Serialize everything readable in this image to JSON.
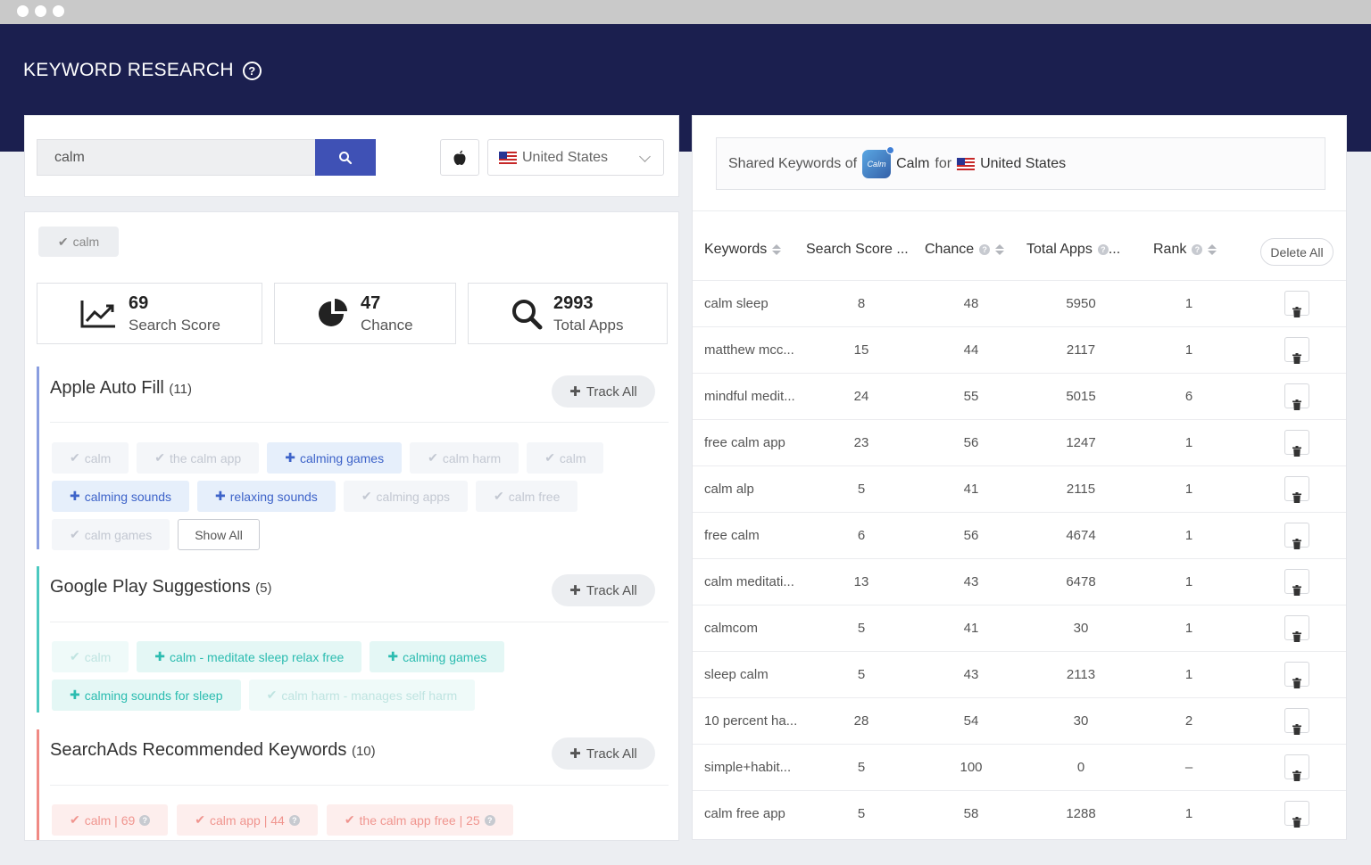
{
  "header": {
    "title": "KEYWORD RESEARCH"
  },
  "search": {
    "value": "calm",
    "country": "United States"
  },
  "selected_keyword": "calm",
  "stats": [
    {
      "value": "69",
      "label": "Search Score",
      "icon": "chart-line-icon"
    },
    {
      "value": "47",
      "label": "Chance",
      "icon": "pie-chart-icon"
    },
    {
      "value": "2993",
      "label": "Total Apps",
      "icon": "search-icon"
    }
  ],
  "sections": {
    "apple": {
      "title": "Apple Auto Fill",
      "count": "(11)",
      "track_all": "Track All",
      "chips": [
        {
          "label": "calm",
          "state": "added"
        },
        {
          "label": "the calm app",
          "state": "added"
        },
        {
          "label": "calming games",
          "state": "new"
        },
        {
          "label": "calm harm",
          "state": "added"
        },
        {
          "label": "calm",
          "state": "added"
        },
        {
          "label": "calming sounds",
          "state": "new"
        },
        {
          "label": "relaxing sounds",
          "state": "new"
        },
        {
          "label": "calming apps",
          "state": "added"
        },
        {
          "label": "calm free",
          "state": "added"
        },
        {
          "label": "calm games",
          "state": "added"
        }
      ],
      "show_all": "Show All"
    },
    "google": {
      "title": "Google Play Suggestions",
      "count": "(5)",
      "track_all": "Track All",
      "chips": [
        {
          "label": "calm",
          "state": "added"
        },
        {
          "label": "calm - meditate sleep relax free",
          "state": "new"
        },
        {
          "label": "calming games",
          "state": "new"
        },
        {
          "label": "calming sounds for sleep",
          "state": "new"
        },
        {
          "label": "calm harm - manages self harm",
          "state": "added"
        }
      ]
    },
    "searchads": {
      "title": "SearchAds Recommended Keywords",
      "count": "(10)",
      "track_all": "Track All",
      "chips": [
        {
          "label": "calm | 69"
        },
        {
          "label": "calm app | 44"
        },
        {
          "label": "the calm app free | 25"
        }
      ]
    }
  },
  "shared": {
    "prefix": "Shared Keywords of",
    "app_name": "Calm",
    "app_icon_text": "Calm",
    "for": "for",
    "country": "United States"
  },
  "table": {
    "headers": {
      "keywords": "Keywords",
      "search_score": "Search Score ...",
      "chance": "Chance",
      "total_apps": "Total Apps",
      "total_apps_suffix": "...",
      "rank": "Rank"
    },
    "delete_all": "Delete All",
    "rows": [
      {
        "keyword": "calm sleep",
        "score": "8",
        "chance": "48",
        "apps": "5950",
        "rank": "1"
      },
      {
        "keyword": "matthew mcc...",
        "score": "15",
        "chance": "44",
        "apps": "2117",
        "rank": "1"
      },
      {
        "keyword": "mindful medit...",
        "score": "24",
        "chance": "55",
        "apps": "5015",
        "rank": "6"
      },
      {
        "keyword": "free calm app",
        "score": "23",
        "chance": "56",
        "apps": "1247",
        "rank": "1"
      },
      {
        "keyword": "calm alp",
        "score": "5",
        "chance": "41",
        "apps": "2115",
        "rank": "1"
      },
      {
        "keyword": "free calm",
        "score": "6",
        "chance": "56",
        "apps": "4674",
        "rank": "1"
      },
      {
        "keyword": "calm meditati...",
        "score": "13",
        "chance": "43",
        "apps": "6478",
        "rank": "1"
      },
      {
        "keyword": "calmcom",
        "score": "5",
        "chance": "41",
        "apps": "30",
        "rank": "1"
      },
      {
        "keyword": "sleep calm",
        "score": "5",
        "chance": "43",
        "apps": "2113",
        "rank": "1"
      },
      {
        "keyword": "10 percent ha...",
        "score": "28",
        "chance": "54",
        "apps": "30",
        "rank": "2"
      },
      {
        "keyword": "simple+habit...",
        "score": "5",
        "chance": "100",
        "apps": "0",
        "rank": "–"
      },
      {
        "keyword": "calm free app",
        "score": "5",
        "chance": "58",
        "apps": "1288",
        "rank": "1"
      }
    ]
  },
  "colors": {
    "header_bg": "#1b1f4f",
    "primary": "#3f51b5",
    "apple_section": "#8a9ee0",
    "google_section": "#4cc9c0",
    "searchads_section": "#f08a84"
  }
}
